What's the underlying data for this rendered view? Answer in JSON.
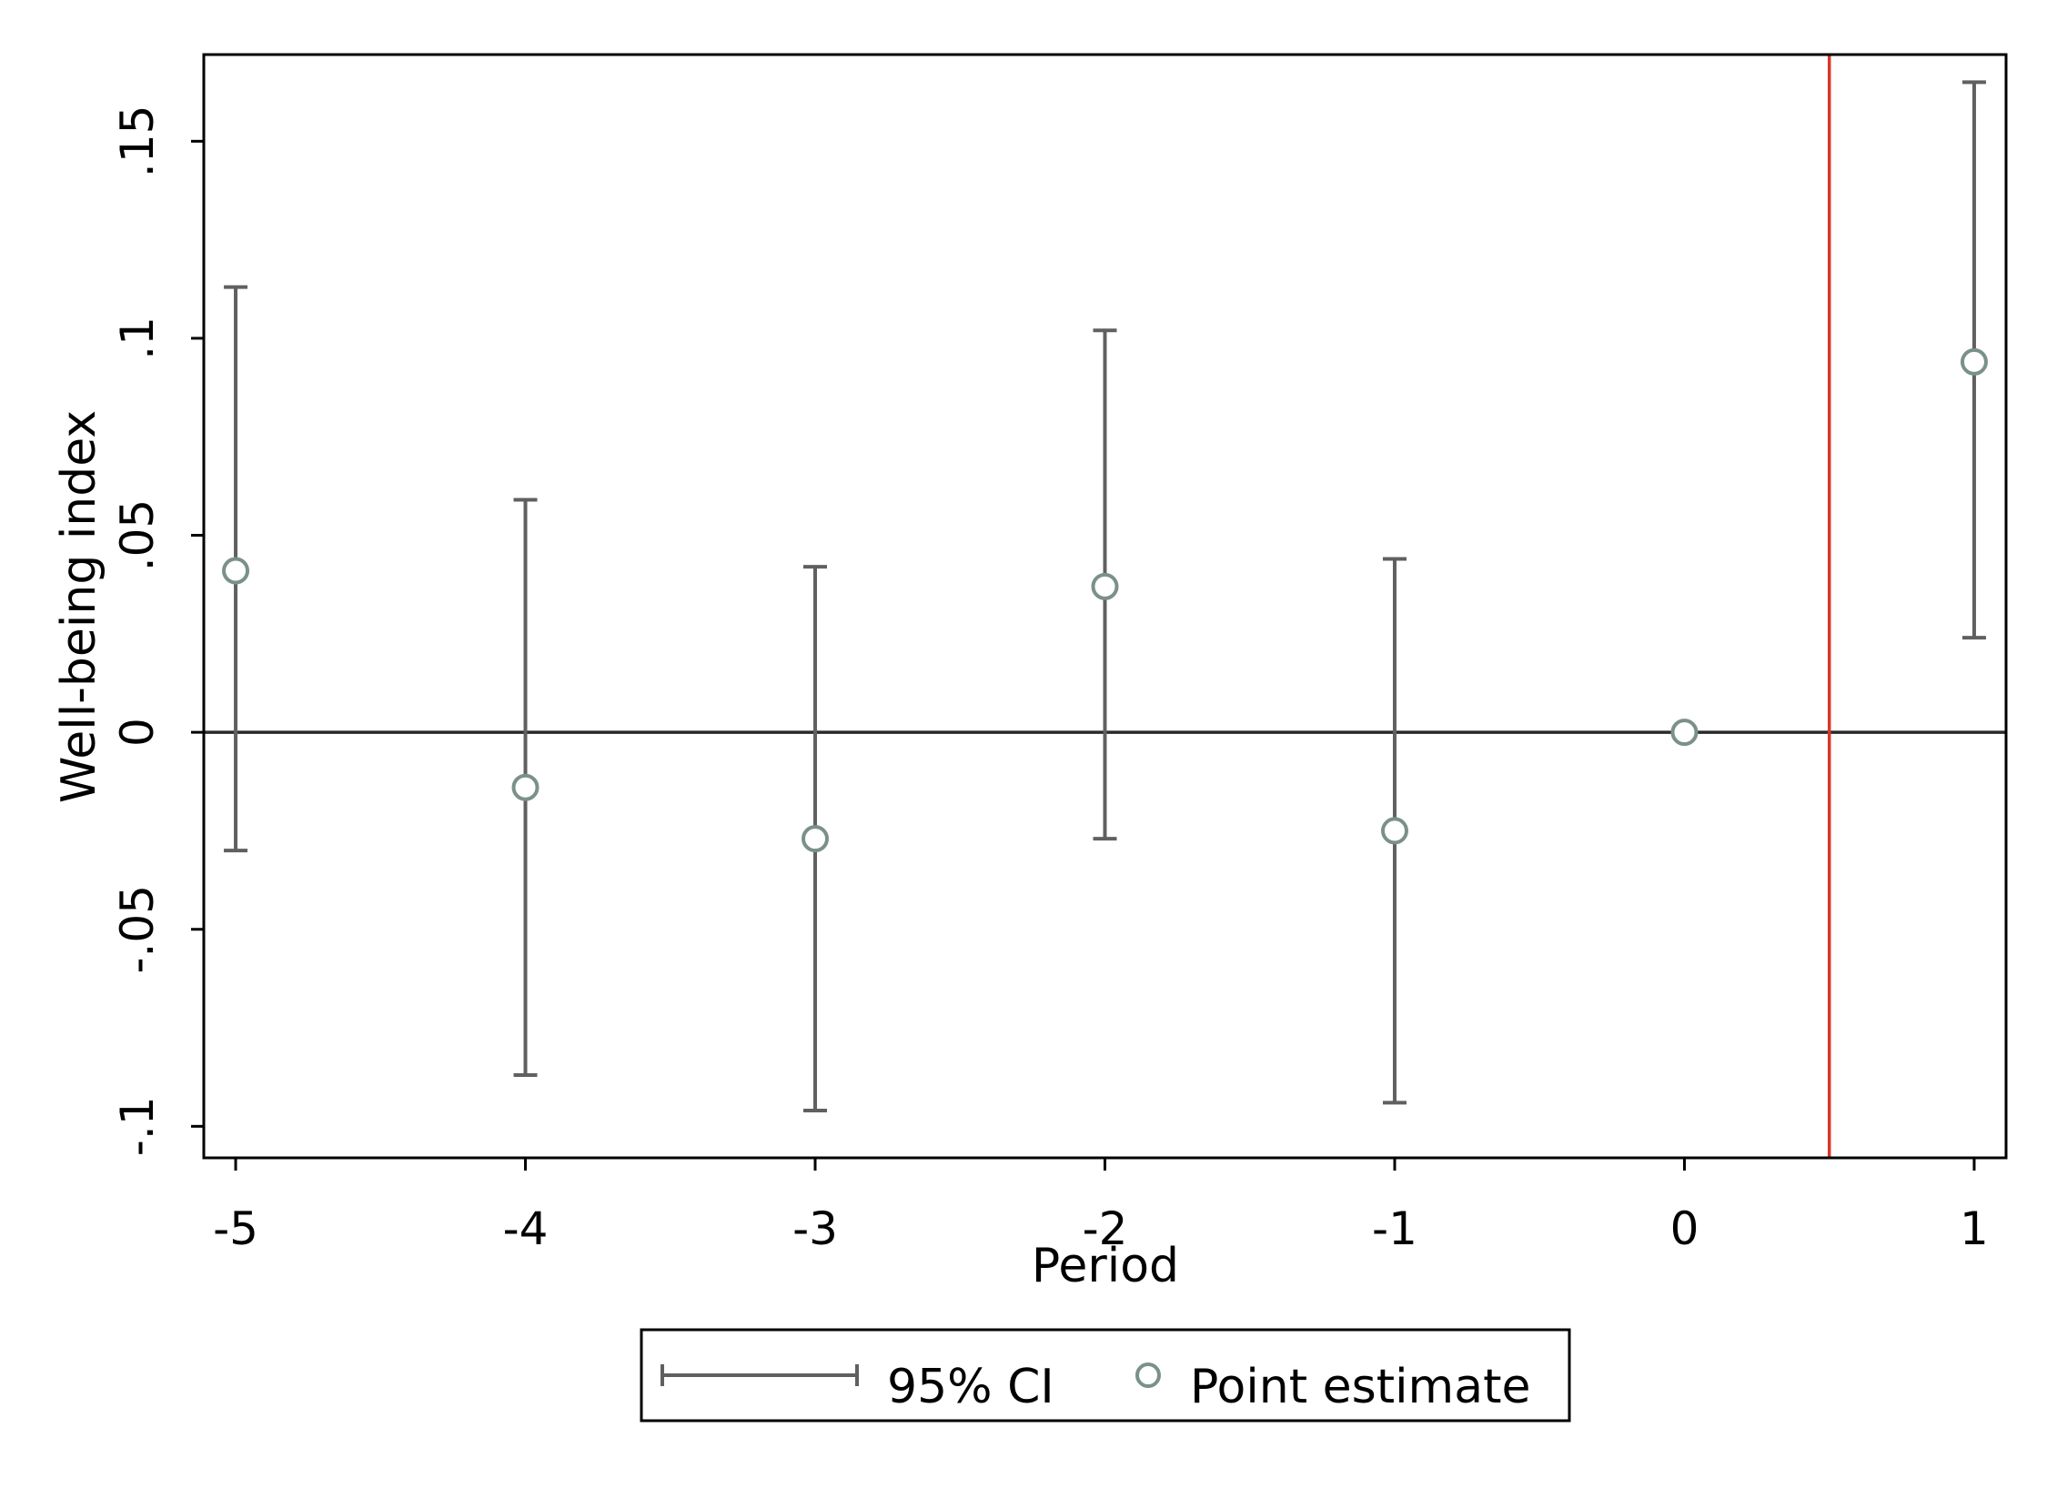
{
  "chart_data": {
    "type": "scatter",
    "title": "",
    "xlabel": "Period",
    "ylabel": "Well-being index",
    "x": [
      -5,
      -4,
      -3,
      -2,
      -1,
      0,
      1
    ],
    "x_tick_labels": [
      "-5",
      "-4",
      "-3",
      "-2",
      "-1",
      "0",
      "1"
    ],
    "xlim": [
      -5.11,
      1.11
    ],
    "ylim": [
      -0.108,
      0.172
    ],
    "y_ticks": [
      -0.1,
      -0.05,
      0,
      0.05,
      0.1,
      0.15
    ],
    "y_tick_labels": [
      "-.1",
      "-.05",
      "0",
      ".05",
      ".1",
      ".15"
    ],
    "grid": false,
    "series": [
      {
        "name": "Point estimate",
        "marker": "hollow-circle",
        "values": [
          0.041,
          -0.014,
          -0.027,
          0.037,
          -0.025,
          0.0,
          0.094
        ]
      },
      {
        "name": "95% CI",
        "marker": "capped-range",
        "lower": [
          -0.03,
          -0.087,
          -0.096,
          -0.027,
          -0.094,
          null,
          0.024
        ],
        "upper": [
          0.113,
          0.059,
          0.042,
          0.102,
          0.044,
          null,
          0.165
        ]
      }
    ],
    "reference_lines": [
      {
        "axis": "y",
        "value": 0,
        "color": "#2a2a2a"
      },
      {
        "axis": "x",
        "value": 0.5,
        "color": "#d9372b"
      }
    ],
    "legend_position": "bottom-center",
    "colors": {
      "ci": "#606060",
      "point": "#7a9189",
      "zero_line": "#2a2a2a",
      "vline": "#d9372b",
      "frame": "#000000"
    }
  }
}
